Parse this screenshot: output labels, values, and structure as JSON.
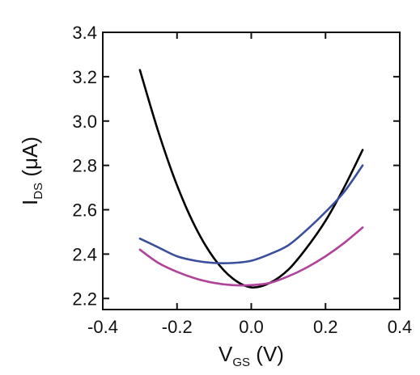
{
  "chart_data": {
    "type": "line",
    "xlabel": {
      "main": "V",
      "sub": "GS",
      "unit": " (V)"
    },
    "ylabel": {
      "main": "I",
      "sub": "DS",
      "unit": " (μA)"
    },
    "xlim": [
      -0.4,
      0.4
    ],
    "ylim": [
      2.15,
      3.4
    ],
    "x_ticks": [
      -0.4,
      -0.2,
      0.0,
      0.2,
      0.4
    ],
    "x_tick_labels": [
      "-0.4",
      "-0.2",
      "0.0",
      "0.2",
      "0.4"
    ],
    "y_ticks": [
      2.2,
      2.4,
      2.6,
      2.8,
      3.0,
      3.2,
      3.4
    ],
    "y_tick_labels": [
      "2.2",
      "2.4",
      "2.6",
      "2.8",
      "3.0",
      "3.2",
      "3.4"
    ],
    "grid": false,
    "legend": "none",
    "series": [
      {
        "color": "#000000",
        "x": [
          -0.3,
          -0.25,
          -0.2,
          -0.15,
          -0.1,
          -0.05,
          0.0,
          0.05,
          0.1,
          0.15,
          0.2,
          0.25,
          0.3
        ],
        "y": [
          3.23,
          2.95,
          2.71,
          2.52,
          2.38,
          2.29,
          2.25,
          2.27,
          2.33,
          2.43,
          2.55,
          2.7,
          2.87
        ]
      },
      {
        "color": "#3a4f9c",
        "x": [
          -0.3,
          -0.25,
          -0.2,
          -0.15,
          -0.1,
          -0.05,
          0.0,
          0.05,
          0.1,
          0.15,
          0.2,
          0.25,
          0.3
        ],
        "y": [
          2.47,
          2.43,
          2.39,
          2.37,
          2.36,
          2.36,
          2.37,
          2.4,
          2.44,
          2.51,
          2.59,
          2.68,
          2.8
        ]
      },
      {
        "color": "#b0429a",
        "x": [
          -0.3,
          -0.25,
          -0.2,
          -0.15,
          -0.1,
          -0.05,
          0.0,
          0.05,
          0.1,
          0.15,
          0.2,
          0.25,
          0.3
        ],
        "y": [
          2.42,
          2.36,
          2.32,
          2.29,
          2.27,
          2.26,
          2.26,
          2.27,
          2.3,
          2.34,
          2.39,
          2.45,
          2.52
        ]
      }
    ]
  }
}
